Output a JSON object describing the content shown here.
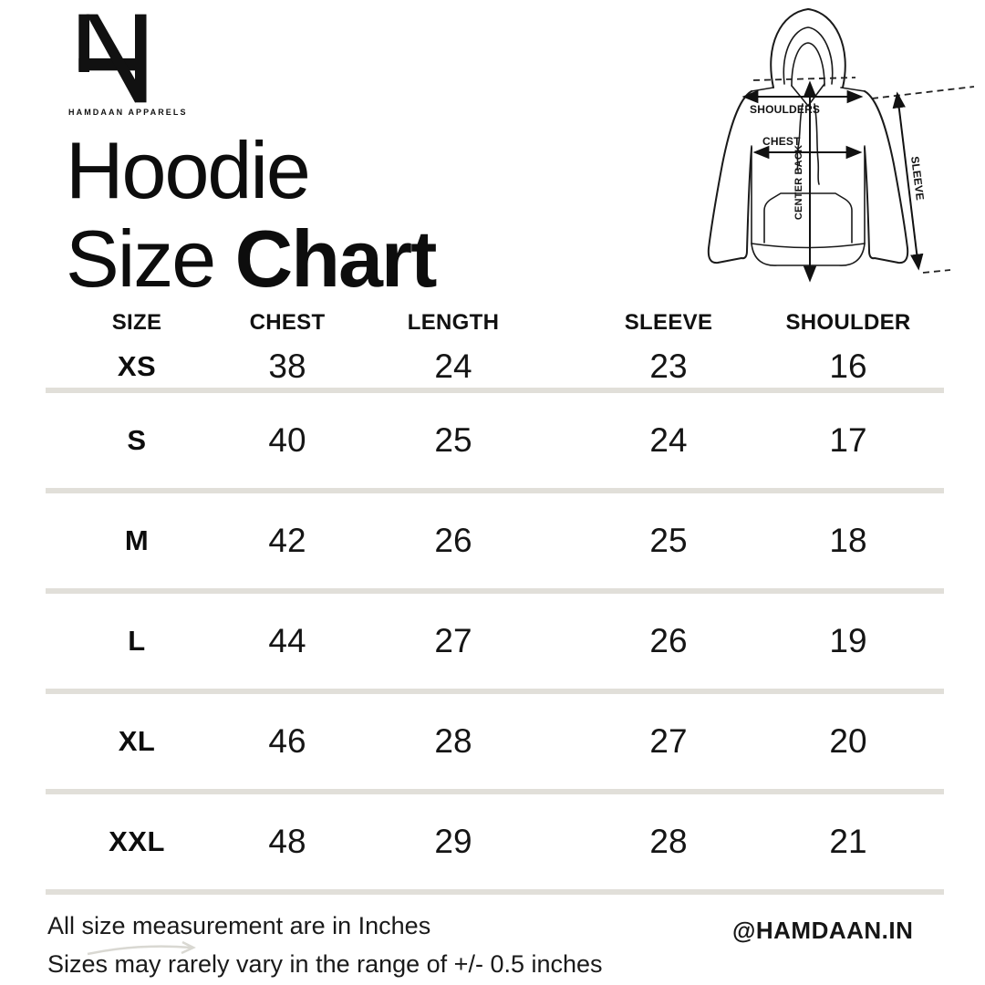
{
  "brand": {
    "logo_text": "HAMDAAN APPARELS",
    "handle": "@HAMDAAN.IN"
  },
  "title": {
    "line1": "Hoodie",
    "line2_regular": "Size ",
    "line2_bold": "Chart"
  },
  "diagram": {
    "labels": {
      "shoulders": "SHOULDERS",
      "chest": "CHEST",
      "center_back": "CENTER BACK",
      "sleeve": "SLEEVE"
    }
  },
  "chart_data": {
    "type": "table",
    "title": "Hoodie Size Chart",
    "units": "inches",
    "columns": [
      "SIZE",
      "CHEST",
      "LENGTH",
      "SLEEVE",
      "SHOULDER"
    ],
    "rows": [
      [
        "XS",
        38,
        24,
        23,
        16
      ],
      [
        "S",
        40,
        25,
        24,
        17
      ],
      [
        "M",
        42,
        26,
        25,
        18
      ],
      [
        "L",
        44,
        27,
        26,
        19
      ],
      [
        "XL",
        46,
        28,
        27,
        20
      ],
      [
        "XXL",
        48,
        29,
        28,
        21
      ]
    ]
  },
  "notes": {
    "line1": "All size measurement are in Inches",
    "line2": "Sizes may rarely vary in the range of +/- 0.5 inches"
  },
  "colors": {
    "ink": "#111111",
    "divider": "#e1dfd9",
    "background": "#ffffff",
    "note_arrow": "#d9d8d2"
  }
}
